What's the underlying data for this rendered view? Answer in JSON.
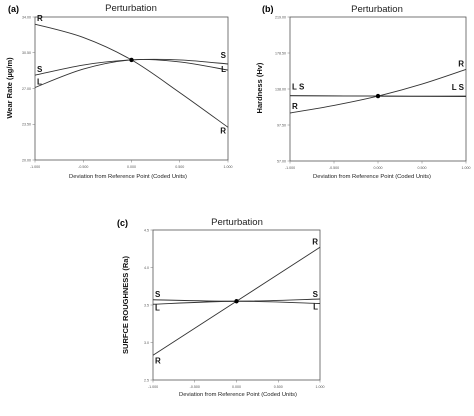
{
  "chart_data": [
    {
      "type": "line",
      "panel_label": "(a)",
      "title": "Perturbation",
      "ylabel": "Wear Rate (µg/m)",
      "xlabel": "Deviation from Reference Point (Coded Units)",
      "x_ticks": [
        "-1.000",
        "-0.500",
        "0.000",
        "0.500",
        "1.000"
      ],
      "y_ticks": [
        "34.00",
        "30.50",
        "27.00",
        "23.50",
        "20.00"
      ],
      "xlim": [
        -1.0,
        1.0
      ],
      "ylim": [
        20.0,
        34.0
      ],
      "reference_point": {
        "x": 0.0,
        "y": 29.8
      },
      "series": [
        {
          "name": "R",
          "x": [
            -1.0,
            -0.5,
            0.0,
            0.5,
            1.0
          ],
          "y": [
            33.3,
            32.0,
            29.8,
            26.6,
            23.2
          ]
        },
        {
          "name": "S",
          "x": [
            -1.0,
            -0.5,
            0.0,
            0.5,
            1.0
          ],
          "y": [
            28.3,
            29.3,
            29.8,
            29.8,
            29.4
          ]
        },
        {
          "name": "L",
          "x": [
            -1.0,
            -0.5,
            0.0,
            0.5,
            1.0
          ],
          "y": [
            27.1,
            28.9,
            29.8,
            29.6,
            28.8
          ]
        }
      ],
      "series_labels": [
        {
          "text": "R",
          "x": -1.0,
          "y": 33.3,
          "side": "left"
        },
        {
          "text": "S",
          "x": -1.0,
          "y": 28.3,
          "side": "left"
        },
        {
          "text": "L",
          "x": -1.0,
          "y": 27.1,
          "side": "left"
        },
        {
          "text": "S",
          "x": 1.0,
          "y": 29.4,
          "side": "right",
          "dy": -6
        },
        {
          "text": "L",
          "x": 1.0,
          "y": 28.8,
          "side": "right",
          "dy": 2
        },
        {
          "text": "R",
          "x": 1.0,
          "y": 23.2,
          "side": "right",
          "dy": 6
        }
      ]
    },
    {
      "type": "line",
      "panel_label": "(b)",
      "title": "Perturbation",
      "ylabel": "Hardness (Hv)",
      "xlabel": "Deviation from Reference Point (Coded Units)",
      "x_ticks": [
        "-1.000",
        "-0.500",
        "0.000",
        "0.500",
        "1.000"
      ],
      "y_ticks": [
        "219.00",
        "178.50",
        "138.00",
        "97.50",
        "57.00"
      ],
      "xlim": [
        -1.0,
        1.0
      ],
      "ylim": [
        57.0,
        219.0
      ],
      "reference_point": {
        "x": 0.0,
        "y": 130.0
      },
      "series": [
        {
          "name": "R",
          "x": [
            -1.0,
            -0.5,
            0.0,
            0.5,
            1.0
          ],
          "y": [
            111.0,
            119.5,
            130.0,
            143.5,
            160.0
          ]
        },
        {
          "name": "L",
          "x": [
            -1.0,
            0.0,
            1.0
          ],
          "y": [
            130.5,
            130.0,
            129.5
          ]
        },
        {
          "name": "S",
          "x": [
            -1.0,
            0.0,
            1.0
          ],
          "y": [
            130.5,
            130.0,
            130.0
          ]
        }
      ],
      "series_labels": [
        {
          "text": "L S",
          "x": -1.0,
          "y": 130.5,
          "side": "left",
          "dy": -6
        },
        {
          "text": "R",
          "x": -1.0,
          "y": 111.0,
          "side": "left",
          "dy": -4
        },
        {
          "text": "L S",
          "x": 1.0,
          "y": 130.0,
          "side": "right",
          "dy": -6
        },
        {
          "text": "R",
          "x": 1.0,
          "y": 160.0,
          "side": "right",
          "dy": -3
        }
      ]
    },
    {
      "type": "line",
      "panel_label": "(c)",
      "title": "Perturbation",
      "ylabel": "SURFCE ROUGHNESS (Ra)",
      "xlabel": "Deviation from Reference Point (Coded Units)",
      "x_ticks": [
        "-1.000",
        "-0.500",
        "0.000",
        "0.500",
        "1.000"
      ],
      "y_ticks": [
        "4.5",
        "4.0",
        "3.5",
        "3.0",
        "2.5"
      ],
      "xlim": [
        -1.0,
        1.0
      ],
      "ylim": [
        2.5,
        4.5
      ],
      "reference_point": {
        "x": 0.0,
        "y": 3.55
      },
      "series": [
        {
          "name": "R",
          "x": [
            -1.0,
            0.0,
            1.0
          ],
          "y": [
            2.83,
            3.55,
            4.27
          ]
        },
        {
          "name": "S",
          "x": [
            -1.0,
            0.0,
            1.0
          ],
          "y": [
            3.57,
            3.55,
            3.58
          ]
        },
        {
          "name": "L",
          "x": [
            -1.0,
            0.0,
            1.0
          ],
          "y": [
            3.51,
            3.55,
            3.52
          ]
        }
      ],
      "series_labels": [
        {
          "text": "S",
          "x": -1.0,
          "y": 3.57,
          "side": "left",
          "dy": -3
        },
        {
          "text": "L",
          "x": -1.0,
          "y": 3.51,
          "side": "left",
          "dy": 6
        },
        {
          "text": "R",
          "x": -1.0,
          "y": 2.83,
          "side": "left",
          "dy": 8
        },
        {
          "text": "S",
          "x": 1.0,
          "y": 3.58,
          "side": "right",
          "dy": -2
        },
        {
          "text": "L",
          "x": 1.0,
          "y": 3.52,
          "side": "right",
          "dy": 6
        },
        {
          "text": "R",
          "x": 1.0,
          "y": 4.27,
          "side": "right",
          "dy": -3
        }
      ]
    }
  ]
}
